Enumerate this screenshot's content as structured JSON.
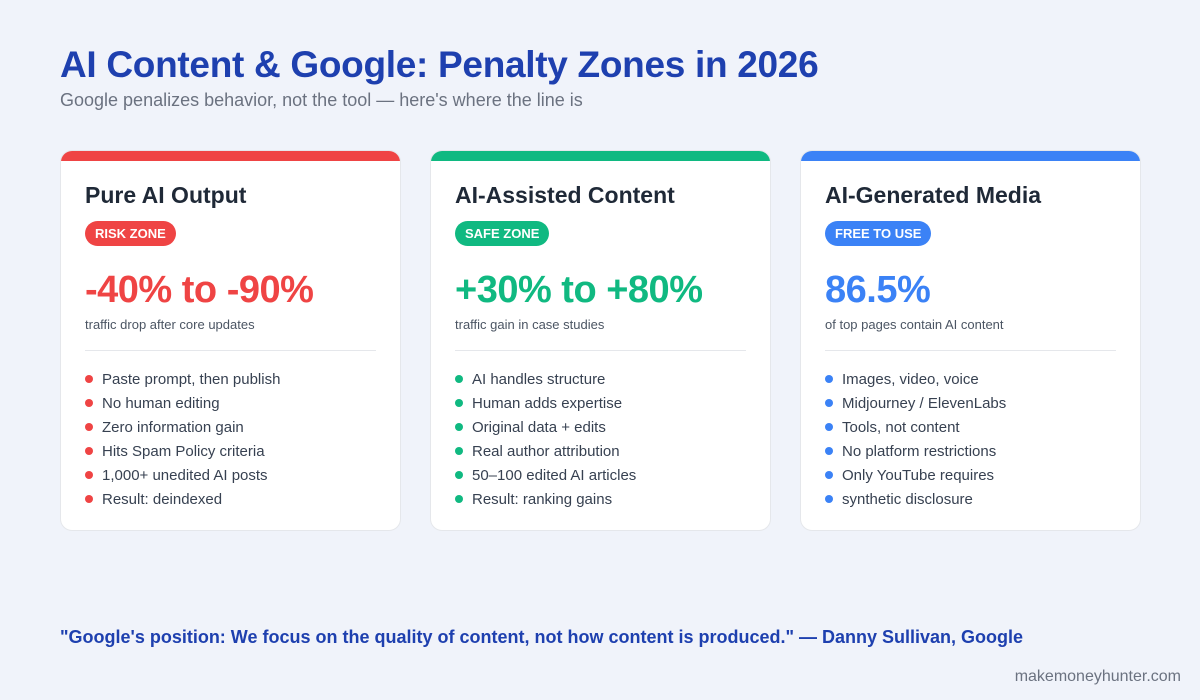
{
  "header": {
    "title": "AI Content & Google: Penalty Zones in 2026",
    "subtitle": "Google penalizes behavior, not the tool — here's where the line is"
  },
  "cards": [
    {
      "title": "Pure AI Output",
      "badge": "RISK ZONE",
      "stat": "-40% to -90%",
      "stat_desc": "traffic drop after core updates",
      "color": "#ef4444",
      "items": [
        "Paste prompt, then publish",
        "No human editing",
        "Zero information gain",
        "Hits Spam Policy criteria",
        "1,000+ unedited AI posts",
        "Result: deindexed"
      ]
    },
    {
      "title": "AI-Assisted Content",
      "badge": "SAFE ZONE",
      "stat": "+30% to +80%",
      "stat_desc": "traffic gain in case studies",
      "color": "#10b981",
      "items": [
        "AI handles structure",
        "Human adds expertise",
        "Original data + edits",
        "Real author attribution",
        "50–100 edited AI articles",
        "Result: ranking gains"
      ]
    },
    {
      "title": "AI-Generated Media",
      "badge": "FREE TO USE",
      "stat": "86.5%",
      "stat_desc": "of top pages contain AI content",
      "color": "#3b82f6",
      "items": [
        "Images, video, voice",
        "Midjourney / ElevenLabs",
        "Tools, not content",
        "No platform restrictions",
        "Only YouTube requires",
        "synthetic disclosure"
      ]
    }
  ],
  "quote": "\"Google's position: We focus on the quality of content, not how content is produced.\" — Danny Sullivan, Google",
  "footer": {
    "site": "makemoneyhunter.com"
  }
}
